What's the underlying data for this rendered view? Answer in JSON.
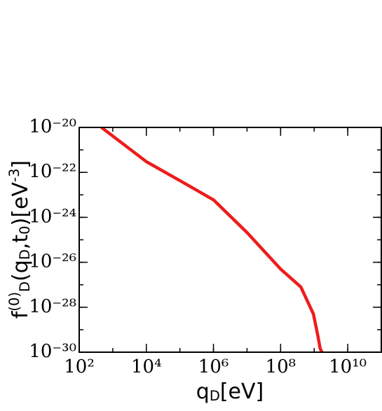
{
  "chart_data": {
    "type": "line",
    "xlabel": "q_{D}[eV]",
    "ylabel": "f^{(0)}_{D}(q_{D},t_{0})[eV^{-3}]",
    "xscale": "log",
    "yscale": "log",
    "xlim": [
      100,
      100000000000
    ],
    "ylim": [
      1e-30,
      1e-20
    ],
    "xticks": [
      {
        "value": 100,
        "label": "10²"
      },
      {
        "value": 10000,
        "label": "10⁴"
      },
      {
        "value": 1000000,
        "label": "10⁶"
      },
      {
        "value": 100000000,
        "label": "10⁸"
      },
      {
        "value": 10000000000,
        "label": "10¹⁰"
      }
    ],
    "yticks": [
      {
        "value": 1e-30,
        "label": "10⁻³⁰"
      },
      {
        "value": 1e-28,
        "label": "10⁻²⁸"
      },
      {
        "value": 1e-26,
        "label": "10⁻²⁶"
      },
      {
        "value": 1e-24,
        "label": "10⁻²⁴"
      },
      {
        "value": 1e-22,
        "label": "10⁻²²"
      },
      {
        "value": 1e-20,
        "label": "10⁻²⁰"
      }
    ],
    "series": [
      {
        "color": "#ee1c1c",
        "x": [
          460,
          10000,
          100000,
          1000000,
          10000000,
          100000000,
          400000000,
          950000000,
          1300000000,
          1500000000,
          1700000000
        ],
        "values": [
          1e-20,
          3e-22,
          4.3e-23,
          6e-24,
          2.1e-25,
          5e-27,
          8e-28,
          5e-29,
          5e-30,
          1.5e-30,
          1e-30
        ]
      }
    ]
  }
}
